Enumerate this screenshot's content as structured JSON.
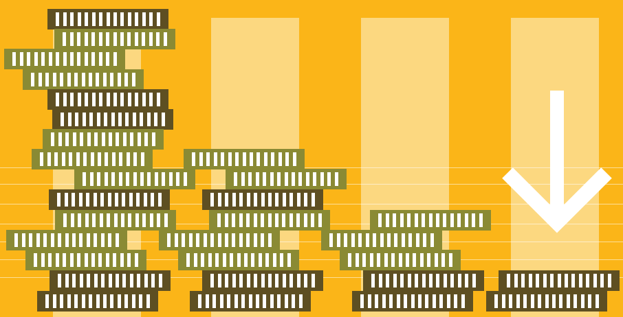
{
  "illustration": {
    "background_color": "#FBB518",
    "column_color": "#FCD880",
    "coin_colors": {
      "dark": "#5E4F22",
      "olive": "#8A8A34",
      "marks": "#FFFFFF"
    },
    "stacks": [
      {
        "name": "stack-1",
        "coins": 15
      },
      {
        "name": "stack-2",
        "coins": 8
      },
      {
        "name": "stack-3",
        "coins": 5
      },
      {
        "name": "stack-4",
        "coins": 2
      }
    ],
    "trend_icon": "down-arrow-icon",
    "arrow_color": "#FFFFFF"
  }
}
